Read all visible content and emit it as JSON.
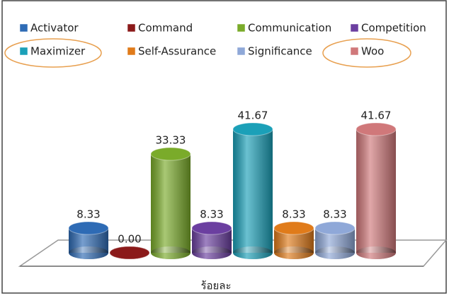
{
  "chart_data": {
    "type": "bar",
    "x_label": "ร้อยละ",
    "series": [
      {
        "name": "Activator",
        "color": "#2e6bb5",
        "values": [
          8.33
        ]
      },
      {
        "name": "Command",
        "color": "#8b1a1a",
        "values": [
          0
        ],
        "value_labels": [
          "0.00"
        ]
      },
      {
        "name": "Communication",
        "color": "#7aab2a",
        "values": [
          33.33
        ]
      },
      {
        "name": "Competition",
        "color": "#6b3fa0",
        "values": [
          8.33
        ]
      },
      {
        "name": "Maximizer",
        "color": "#1ba0b8",
        "values": [
          41.67
        ]
      },
      {
        "name": "Self-Assurance",
        "color": "#e07b1a",
        "values": [
          8.33
        ]
      },
      {
        "name": "Significance",
        "color": "#8fa8d8",
        "values": [
          8.33
        ]
      },
      {
        "name": "Woo",
        "color": "#d0787a",
        "values": [
          41.67
        ]
      }
    ]
  }
}
